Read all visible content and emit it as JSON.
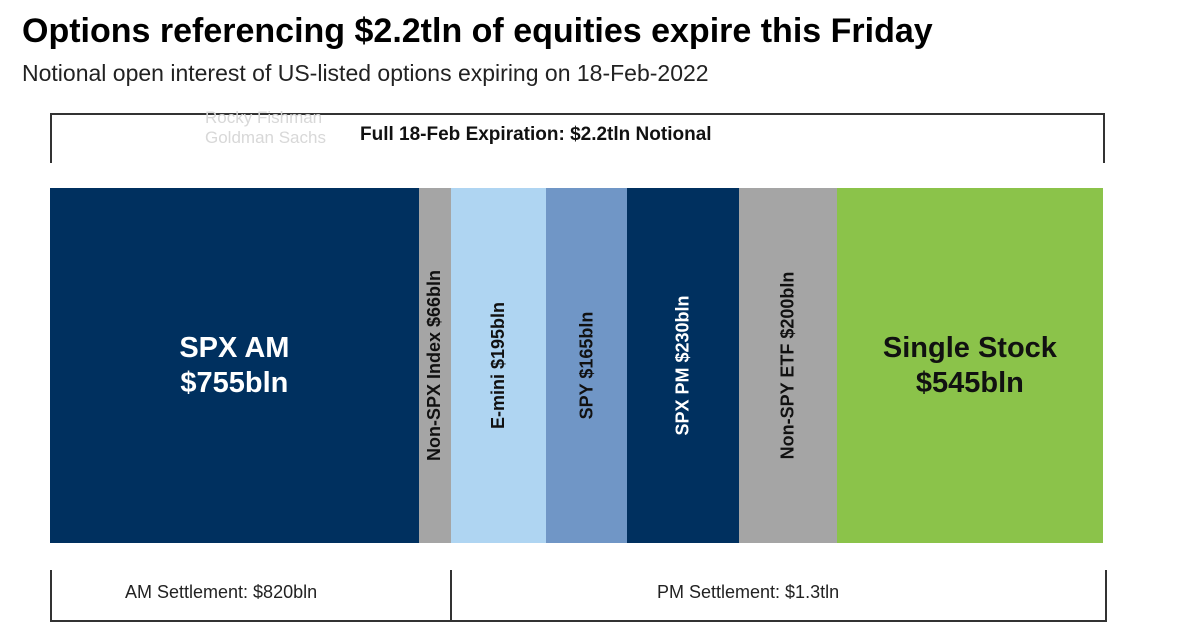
{
  "title": "Options referencing $2.2tln of equities expire this Friday",
  "subtitle": "Notional open interest of US-listed options expiring on 18-Feb-2022",
  "watermark": [
    "Rocky Fishman",
    "Goldman Sachs"
  ],
  "chart_data": {
    "type": "bar",
    "orientation": "stacked-horizontal",
    "title": "Full 18-Feb Expiration: $2.2tln Notional",
    "unit": "$bln",
    "categories": [
      "SPX AM",
      "Non-SPX Index",
      "E-mini",
      "SPY",
      "SPX PM",
      "Non-SPY ETF",
      "Single Stock"
    ],
    "values": [
      755,
      66,
      195,
      165,
      230,
      200,
      545
    ],
    "labels": [
      [
        "SPX AM",
        "$755bln"
      ],
      "Non-SPX Index $66bln",
      "E-mini $195bln",
      "SPY $165bln",
      "SPX PM $230bln",
      "Non-SPY ETF $200bln",
      [
        "Single Stock",
        "$545bln"
      ]
    ],
    "colors": [
      "#00305f",
      "#a5a5a5",
      "#afd5f2",
      "#7096c6",
      "#00305f",
      "#a5a5a5",
      "#8bc34a"
    ],
    "text_colors": [
      "#ffffff",
      "#111111",
      "#111111",
      "#111111",
      "#ffffff",
      "#111111",
      "#111111"
    ],
    "groups": [
      {
        "label": "AM Settlement: $820bln",
        "span": [
          0,
          1
        ]
      },
      {
        "label": "PM Settlement: $1.3tln",
        "span": [
          2,
          6
        ]
      }
    ]
  }
}
